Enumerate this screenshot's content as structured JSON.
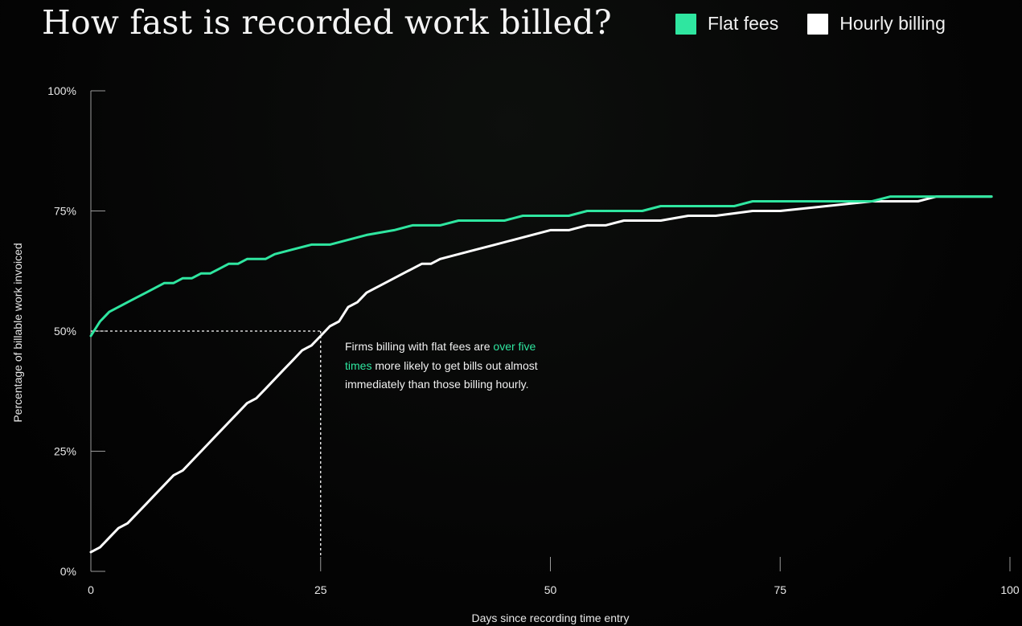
{
  "title": "How fast is recorded work billed?",
  "colors": {
    "flat": "#2fe6a0",
    "hourly": "#ffffff",
    "axis": "#9a9a9a"
  },
  "legend": [
    {
      "label": "Flat fees",
      "color": "#2fe6a0"
    },
    {
      "label": "Hourly billing",
      "color": "#ffffff"
    }
  ],
  "annotation": {
    "before": "Firms billing with flat fees are ",
    "highlight": "over five times",
    "after": " more likely to get bills out almost immediately than those billing hourly."
  },
  "chart_data": {
    "type": "line",
    "title": "How fast is recorded work billed?",
    "xlabel": "Days since recording time entry",
    "ylabel": "Percentage of billable work invoiced",
    "xlim": [
      0,
      100
    ],
    "ylim": [
      0,
      100
    ],
    "x_ticks": [
      0,
      25,
      50,
      75,
      100
    ],
    "x_tick_labels": [
      "0",
      "25",
      "50",
      "75",
      "100"
    ],
    "y_ticks": [
      0,
      25,
      50,
      75,
      100
    ],
    "y_tick_labels": [
      "0%",
      "25%",
      "50%",
      "75%",
      "100%"
    ],
    "grid": false,
    "legend_position": "top-right",
    "reference_point": {
      "x": 25,
      "y": 50
    },
    "series": [
      {
        "name": "Flat fees",
        "color": "#2fe6a0",
        "x": [
          0,
          1,
          2,
          3,
          4,
          5,
          6,
          7,
          8,
          9,
          10,
          11,
          12,
          13,
          14,
          15,
          16,
          17,
          18,
          19,
          20,
          22,
          24,
          26,
          28,
          30,
          33,
          35,
          38,
          40,
          42,
          45,
          47,
          50,
          52,
          54,
          57,
          60,
          62,
          65,
          67,
          70,
          72,
          75,
          78,
          82,
          85,
          87,
          90,
          92,
          98
        ],
        "y": [
          49,
          52,
          54,
          55,
          56,
          57,
          58,
          59,
          60,
          60,
          61,
          61,
          62,
          62,
          63,
          64,
          64,
          65,
          65,
          65,
          66,
          67,
          68,
          68,
          69,
          70,
          71,
          72,
          72,
          73,
          73,
          73,
          74,
          74,
          74,
          75,
          75,
          75,
          76,
          76,
          76,
          76,
          77,
          77,
          77,
          77,
          77,
          78,
          78,
          78,
          78
        ]
      },
      {
        "name": "Hourly billing",
        "color": "#ffffff",
        "x": [
          0,
          1,
          2,
          3,
          4,
          5,
          6,
          7,
          8,
          9,
          10,
          11,
          12,
          13,
          14,
          15,
          16,
          17,
          18,
          19,
          20,
          21,
          22,
          23,
          24,
          25,
          26,
          27,
          28,
          29,
          30,
          31,
          32,
          33,
          34,
          35,
          36,
          37,
          38,
          40,
          42,
          44,
          46,
          48,
          50,
          52,
          54,
          56,
          58,
          60,
          62,
          65,
          68,
          72,
          75,
          80,
          85,
          90,
          92,
          98
        ],
        "y": [
          4,
          5,
          7,
          9,
          10,
          12,
          14,
          16,
          18,
          20,
          21,
          23,
          25,
          27,
          29,
          31,
          33,
          35,
          36,
          38,
          40,
          42,
          44,
          46,
          47,
          49,
          51,
          52,
          55,
          56,
          58,
          59,
          60,
          61,
          62,
          63,
          64,
          64,
          65,
          66,
          67,
          68,
          69,
          70,
          71,
          71,
          72,
          72,
          73,
          73,
          73,
          74,
          74,
          75,
          75,
          76,
          77,
          77,
          78,
          78
        ]
      }
    ]
  }
}
